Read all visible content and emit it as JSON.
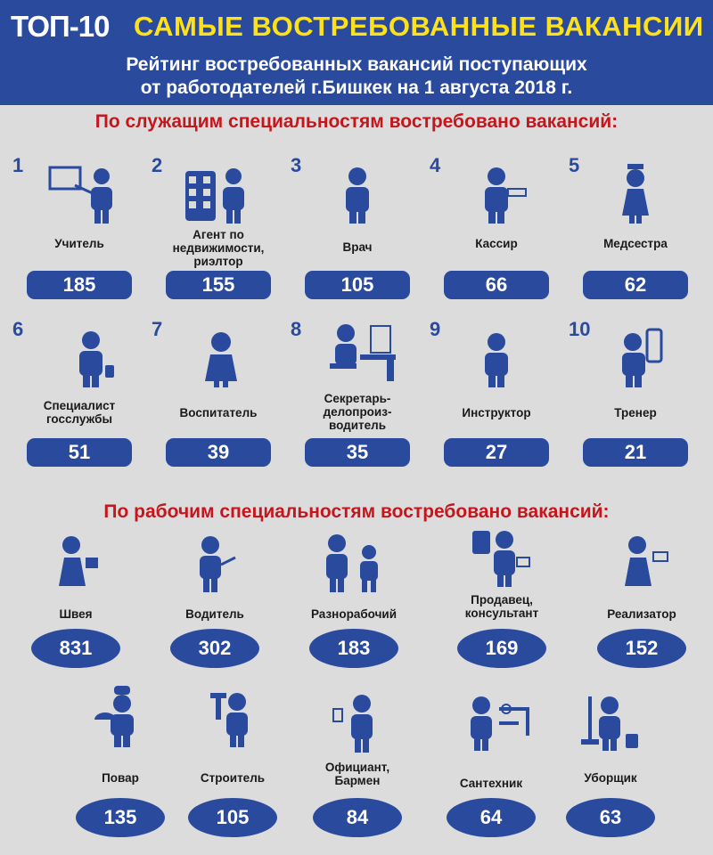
{
  "header": {
    "badge": "ТОП-10",
    "title": "САМЫЕ ВОСТРЕБОВАННЫЕ ВАКАНСИИ",
    "subtitle": "Рейтинг востребованных вакансий поступающих\nот работодателей г.Бишкек на 1 августа 2018 г."
  },
  "colors": {
    "primary": "#2a4a9e",
    "accent": "#ffe11a",
    "section": "#c4161c",
    "background": "#dcdcdc"
  },
  "office": {
    "title": "По служащим специальностям  востребовано вакансий:",
    "items": [
      {
        "rank": "1",
        "label": "Учитель",
        "value": "185",
        "icon": "teacher-icon"
      },
      {
        "rank": "2",
        "label": "Агент по\nнедвижимости,\nриэлтор",
        "value": "155",
        "icon": "realtor-icon"
      },
      {
        "rank": "3",
        "label": "Врач",
        "value": "105",
        "icon": "doctor-icon"
      },
      {
        "rank": "4",
        "label": "Кассир",
        "value": "66",
        "icon": "cashier-icon"
      },
      {
        "rank": "5",
        "label": "Медсестра",
        "value": "62",
        "icon": "nurse-icon"
      },
      {
        "rank": "6",
        "label": "Специалист\nгосслужбы",
        "value": "51",
        "icon": "civil-servant-icon"
      },
      {
        "rank": "7",
        "label": "Воспитатель",
        "value": "39",
        "icon": "educator-icon"
      },
      {
        "rank": "8",
        "label": "Секретарь-\nделопроиз-\nводитель",
        "value": "35",
        "icon": "secretary-icon"
      },
      {
        "rank": "9",
        "label": "Инструктор",
        "value": "27",
        "icon": "instructor-icon"
      },
      {
        "rank": "10",
        "label": "Тренер",
        "value": "21",
        "icon": "coach-icon"
      }
    ]
  },
  "workers": {
    "title": "По рабочим специальностям  востребовано вакансий:",
    "items": [
      {
        "label": "Швея",
        "value": "831",
        "icon": "seamstress-icon"
      },
      {
        "label": "Водитель",
        "value": "302",
        "icon": "driver-icon"
      },
      {
        "label": "Разнорабочий",
        "value": "183",
        "icon": "laborer-icon"
      },
      {
        "label": "Продавец,\nконсультант",
        "value": "169",
        "icon": "salesperson-icon"
      },
      {
        "label": "Реализатор",
        "value": "152",
        "icon": "seller-icon"
      },
      {
        "label": "Повар",
        "value": "135",
        "icon": "cook-icon"
      },
      {
        "label": "Строитель",
        "value": "105",
        "icon": "builder-icon"
      },
      {
        "label": "Официант,\nБармен",
        "value": "84",
        "icon": "waiter-icon"
      },
      {
        "label": "Сантехник",
        "value": "64",
        "icon": "plumber-icon"
      },
      {
        "label": "Уборщик",
        "value": "63",
        "icon": "cleaner-icon"
      }
    ]
  }
}
